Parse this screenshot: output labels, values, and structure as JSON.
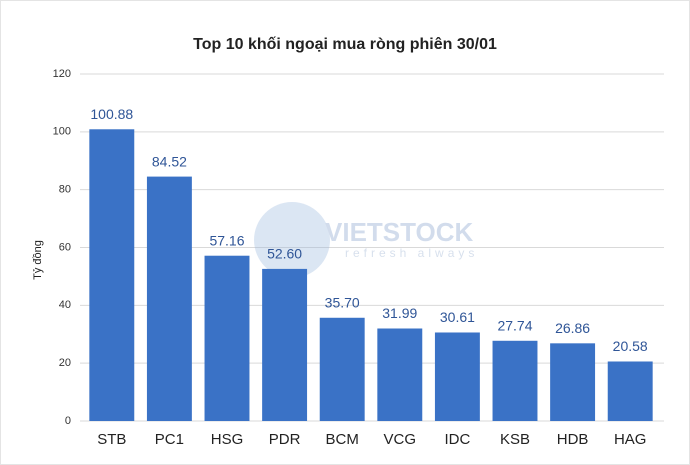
{
  "chart_data": {
    "type": "bar",
    "title": "Top 10 khối ngoại mua ròng phiên 30/01",
    "y_label": "Tỷ đồng",
    "categories": [
      "STB",
      "PC1",
      "HSG",
      "PDR",
      "BCM",
      "VCG",
      "IDC",
      "KSB",
      "HDB",
      "HAG"
    ],
    "values": [
      100.88,
      84.52,
      57.16,
      52.6,
      35.7,
      31.99,
      30.61,
      27.74,
      26.86,
      20.58
    ],
    "value_labels": [
      "100.88",
      "84.52",
      "57.16",
      "52.60",
      "35.70",
      "31.99",
      "30.61",
      "27.74",
      "26.86",
      "20.58"
    ],
    "color": "#3a72c6",
    "ylim": [
      0,
      120
    ],
    "yticks": [
      0,
      20,
      40,
      60,
      80,
      100,
      120
    ],
    "grid": true,
    "watermark": {
      "name": "VIETSTOCK",
      "tagline": "refresh always"
    }
  }
}
